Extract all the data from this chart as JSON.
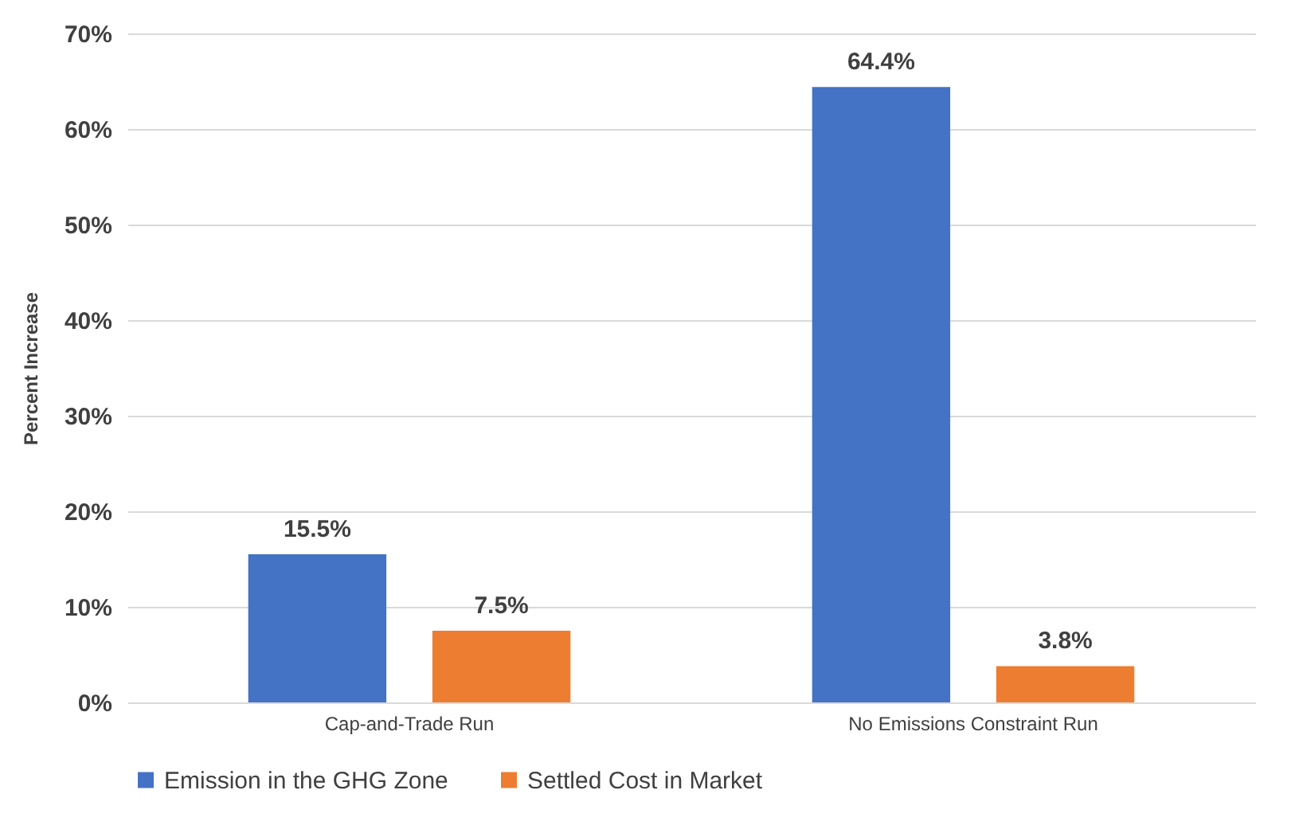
{
  "chart_data": {
    "type": "bar",
    "ylabel": "Percent Increase",
    "categories": [
      "Cap-and-Trade Run",
      "No Emissions Constraint Run"
    ],
    "series": [
      {
        "name": "Emission in the GHG Zone",
        "color": "#4472c4",
        "values": [
          15.5,
          64.4
        ],
        "value_labels": [
          "15.5%",
          "64.4%"
        ]
      },
      {
        "name": "Settled Cost in Market",
        "color": "#ed7d31",
        "values": [
          7.5,
          3.8
        ],
        "value_labels": [
          "7.5%",
          "3.8%"
        ]
      }
    ],
    "ylim": [
      0,
      70
    ],
    "yticks": [
      {
        "value": 0,
        "label": "0%"
      },
      {
        "value": 10,
        "label": "10%"
      },
      {
        "value": 20,
        "label": "20%"
      },
      {
        "value": 30,
        "label": "30%"
      },
      {
        "value": 40,
        "label": "40%"
      },
      {
        "value": 50,
        "label": "50%"
      },
      {
        "value": 60,
        "label": "60%"
      },
      {
        "value": 70,
        "label": "70%"
      }
    ],
    "grid": "y",
    "legend": "bottom"
  }
}
